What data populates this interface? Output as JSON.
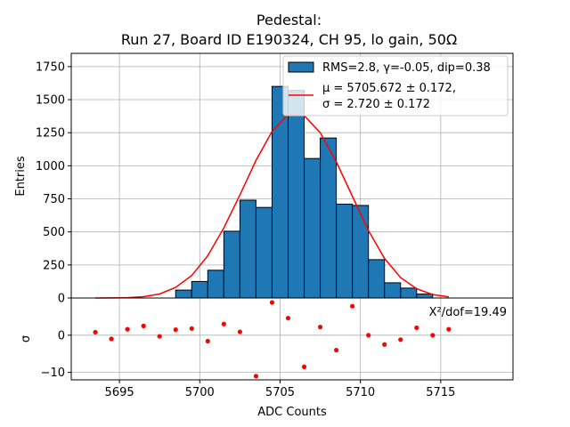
{
  "chart_data": {
    "type": "bar",
    "title_line1": "Pedestal:",
    "title_line2": "Run 27, Board ID E190324, CH 95, lo gain, 50Ω",
    "xlabel": "ADC Counts",
    "top_panel": {
      "ylabel": "Entries",
      "xlim": [
        5692,
        5719.5
      ],
      "ylim": [
        0,
        1850
      ],
      "yticks": [
        0,
        250,
        500,
        750,
        1000,
        1250,
        1500,
        1750
      ],
      "ytick_labels": [
        "0",
        "250",
        "500",
        "750",
        "1000",
        "1250",
        "1500",
        "1750"
      ],
      "grid": true,
      "histogram": {
        "bin_edges": [
          5698.5,
          5699.5,
          5700.5,
          5701.5,
          5702.5,
          5703.5,
          5704.5,
          5705.5,
          5706.5,
          5707.5,
          5708.5,
          5709.5,
          5710.5,
          5711.5,
          5712.5,
          5713.5,
          5714.5
        ],
        "counts": [
          60,
          125,
          210,
          505,
          740,
          685,
          1600,
          1570,
          1055,
          1210,
          710,
          700,
          290,
          115,
          75,
          30
        ],
        "color": "#1f77b4",
        "edgecolor": "#000000"
      },
      "fit_curve": {
        "x": [
          5693.5,
          5694.5,
          5695.5,
          5696.5,
          5697.5,
          5698.5,
          5699.5,
          5700.5,
          5701.5,
          5702.5,
          5703.5,
          5704.5,
          5705.5,
          5706.5,
          5707.5,
          5708.5,
          5709.5,
          5710.5,
          5711.5,
          5712.5,
          5713.5,
          5714.5,
          5715.5
        ],
        "y": [
          0,
          1,
          3,
          10,
          30,
          80,
          170,
          320,
          530,
          780,
          1040,
          1260,
          1390,
          1380,
          1250,
          1030,
          770,
          510,
          300,
          155,
          70,
          26,
          8
        ],
        "color": "#ff0000"
      },
      "legend": {
        "placement": "top-right",
        "entries": [
          {
            "label": "RMS=2.8, γ=-0.05, dip=0.38",
            "kind": "patch"
          },
          {
            "label_line1": "μ = 5705.672 ± 0.172,",
            "label_line2": "σ = 2.720 ± 0.172",
            "kind": "line"
          }
        ]
      }
    },
    "bottom_panel": {
      "type": "scatter",
      "ylabel": "σ",
      "ylim": [
        -12,
        10
      ],
      "yticks": [
        -10,
        0
      ],
      "ytick_labels": [
        "−10",
        "0"
      ],
      "xticks": [
        5695,
        5700,
        5705,
        5710,
        5715
      ],
      "xtick_labels": [
        "5695",
        "5700",
        "5705",
        "5710",
        "5715"
      ],
      "annotation": "X²/dof=19.49",
      "grid": true,
      "marker_color": "#ff0000",
      "x": [
        5693.5,
        5694.5,
        5695.5,
        5696.5,
        5697.5,
        5698.5,
        5699.5,
        5700.5,
        5701.5,
        5702.5,
        5703.5,
        5704.5,
        5705.5,
        5706.5,
        5707.5,
        5708.5,
        5709.5,
        5710.5,
        5711.5,
        5712.5,
        5713.5,
        5714.5,
        5715.5
      ],
      "y": [
        0.8,
        -1.0,
        1.6,
        2.5,
        -0.3,
        1.5,
        1.8,
        -1.6,
        3.0,
        0.9,
        -11.0,
        8.8,
        4.6,
        -8.5,
        2.2,
        -4.0,
        7.8,
        0.0,
        -2.5,
        -1.2,
        2.0,
        0.0,
        1.6
      ]
    }
  }
}
